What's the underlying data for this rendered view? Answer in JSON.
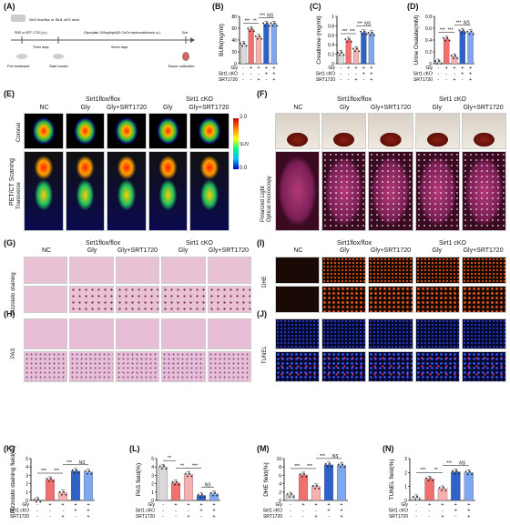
{
  "panels": {
    "A": {
      "label": "(A)",
      "top_small": "Sirt1 flox/flox or Sirt1 cKO mice",
      "timeline_labels": [
        "PBS or SRT 1720 (i.p.)",
        "Glyoxylate 100mg/kg/d(Or CaOx nephrocalcinosis i.p.)",
        "End"
      ],
      "periods": [
        "Three days",
        "Seven days"
      ],
      "steps": [
        "Pre-treatment",
        "Start model",
        "Tissue collection"
      ]
    },
    "B": {
      "label": "(B)",
      "ylabel": "BUN(mg/ml)"
    },
    "C": {
      "label": "(C)",
      "ylabel": "Creatinine\n(mg/ml)"
    },
    "D": {
      "label": "(D)",
      "ylabel": "Urine\nOxalate(mM)"
    },
    "E": {
      "label": "(E)",
      "group_left": "Sirt1flox/flox",
      "group_right": "Sirt1 cKO",
      "cols": [
        "NC",
        "Gly",
        "Gly+SRT1720",
        "Gly",
        "Gly+SRT1720"
      ],
      "rows": [
        "Coronal",
        "Transverse"
      ],
      "side": "PET/CT Scaning",
      "scale_max": "2.0",
      "scale_min": "0.0",
      "scale_unit": "SUV"
    },
    "F": {
      "label": "(F)",
      "group_left": "Sirt1flox/flox",
      "group_right": "Sirt1 cKO",
      "cols": [
        "NC",
        "Gly",
        "Gly+SRT1720",
        "Gly",
        "Gly+SRT1720"
      ],
      "side": "Polarized Light\nOptical microscopy"
    },
    "G": {
      "label": "(G)",
      "group_left": "Sirt1flox/flox",
      "group_right": "Sirt1 cKO",
      "cols": [
        "NC",
        "Gly",
        "Gly+SRT1720",
        "Gly",
        "Gly+SRT1720"
      ],
      "side": "Pizzolato staining"
    },
    "H": {
      "label": "(H)",
      "side": "PAS"
    },
    "I": {
      "label": "(I)",
      "group_left": "Sirt1flox/flox",
      "group_right": "Sirt1 cKO",
      "cols": [
        "NC",
        "Gly",
        "Gly+SRT1720",
        "Gly",
        "Gly+SRT1720"
      ],
      "side": "DHE"
    },
    "J": {
      "label": "(J)",
      "side": "TUNEL"
    },
    "K": {
      "label": "(K)",
      "ylabel": "Pizzolato staining\nfield(%)"
    },
    "L": {
      "label": "(L)",
      "ylabel": "PAS field(%)"
    },
    "M": {
      "label": "(M)",
      "ylabel": "DHE field(%)"
    },
    "N": {
      "label": "(N)",
      "ylabel": "TUNEL field(%)"
    }
  },
  "row_labels": [
    "Gly",
    "Sirt1 cKO",
    "SRT1720"
  ],
  "signs": [
    [
      "-",
      "+",
      "+",
      "+",
      "+"
    ],
    [
      "-",
      "-",
      "-",
      "+",
      "+"
    ],
    [
      "-",
      "-",
      "+",
      "-",
      "+"
    ]
  ],
  "colors": {
    "bar1": "#d9d9d9",
    "bar2": "#f07070",
    "bar3": "#f7b0b0",
    "bar4": "#2f62c8",
    "bar5": "#7fa7ef",
    "he_pink": "#e9c1d4",
    "dhe_bg": "#1a0a05",
    "tunel_bg": "#06082e"
  },
  "chart_data": [
    {
      "id": "B",
      "type": "bar",
      "ylabel": "BUN(mg/ml)",
      "ylim": [
        0,
        80
      ],
      "yticks": [
        0,
        20,
        40,
        60,
        80
      ],
      "values": [
        33,
        58,
        45,
        67,
        67
      ],
      "significance": [
        {
          "from": 0,
          "to": 1,
          "text": "***"
        },
        {
          "from": 1,
          "to": 2,
          "text": "**"
        },
        {
          "from": 2,
          "to": 3,
          "text": "***"
        },
        {
          "from": 3,
          "to": 4,
          "text": "NS"
        }
      ]
    },
    {
      "id": "C",
      "type": "bar",
      "ylabel": "Creatinine (mg/ml)",
      "ylim": [
        0,
        1.0
      ],
      "yticks": [
        0.0,
        0.2,
        0.4,
        0.6,
        0.8,
        1.0
      ],
      "values": [
        0.22,
        0.5,
        0.3,
        0.66,
        0.64
      ],
      "significance": [
        {
          "from": 0,
          "to": 1,
          "text": "***"
        },
        {
          "from": 1,
          "to": 2,
          "text": "***"
        },
        {
          "from": 2,
          "to": 3,
          "text": "***"
        },
        {
          "from": 3,
          "to": 4,
          "text": "NS"
        }
      ]
    },
    {
      "id": "D",
      "type": "bar",
      "ylabel": "Urine Oxalate(mM)",
      "ylim": [
        0,
        0.8
      ],
      "yticks": [
        0.0,
        0.2,
        0.4,
        0.6,
        0.8
      ],
      "values": [
        0.03,
        0.42,
        0.12,
        0.55,
        0.53
      ],
      "significance": [
        {
          "from": 0,
          "to": 1,
          "text": "***"
        },
        {
          "from": 1,
          "to": 2,
          "text": "***"
        },
        {
          "from": 2,
          "to": 3,
          "text": "***"
        },
        {
          "from": 3,
          "to": 4,
          "text": "NS"
        }
      ]
    },
    {
      "id": "K",
      "type": "bar",
      "ylabel": "Pizzolato staining field(%)",
      "ylim": [
        0,
        5
      ],
      "yticks": [
        0,
        1,
        2,
        3,
        4,
        5
      ],
      "values": [
        0.05,
        2.5,
        0.9,
        3.5,
        3.4
      ],
      "significance": [
        {
          "from": 0,
          "to": 1,
          "text": "***"
        },
        {
          "from": 1,
          "to": 2,
          "text": "***"
        },
        {
          "from": 2,
          "to": 3,
          "text": "***"
        },
        {
          "from": 3,
          "to": 4,
          "text": "NS"
        }
      ]
    },
    {
      "id": "L",
      "type": "bar",
      "ylabel": "PAS field(%)",
      "ylim": [
        0,
        5
      ],
      "yticks": [
        0,
        1,
        2,
        3,
        4,
        5
      ],
      "values": [
        4.0,
        2.1,
        3.1,
        0.6,
        0.8
      ],
      "significance": [
        {
          "from": 0,
          "to": 1,
          "text": "**"
        },
        {
          "from": 1,
          "to": 2,
          "text": "**"
        },
        {
          "from": 2,
          "to": 3,
          "text": "***"
        },
        {
          "from": 3,
          "to": 4,
          "text": "NS"
        }
      ]
    },
    {
      "id": "M",
      "type": "bar",
      "ylabel": "DHE field(%)",
      "ylim": [
        0,
        10
      ],
      "yticks": [
        0,
        2,
        4,
        6,
        8,
        10
      ],
      "values": [
        1.3,
        6.1,
        3.3,
        8.5,
        8.4
      ],
      "significance": [
        {
          "from": 0,
          "to": 1,
          "text": "***"
        },
        {
          "from": 1,
          "to": 2,
          "text": "***"
        },
        {
          "from": 2,
          "to": 3,
          "text": "***"
        },
        {
          "from": 3,
          "to": 4,
          "text": "NS"
        }
      ]
    },
    {
      "id": "N",
      "type": "bar",
      "ylabel": "TUNEL field(%)",
      "ylim": [
        0,
        3
      ],
      "yticks": [
        0,
        1,
        2,
        3
      ],
      "values": [
        0.2,
        1.55,
        0.85,
        2.05,
        2.0
      ],
      "significance": [
        {
          "from": 0,
          "to": 1,
          "text": "***"
        },
        {
          "from": 1,
          "to": 2,
          "text": "**"
        },
        {
          "from": 2,
          "to": 3,
          "text": "***"
        },
        {
          "from": 3,
          "to": 4,
          "text": "NS"
        }
      ]
    }
  ]
}
